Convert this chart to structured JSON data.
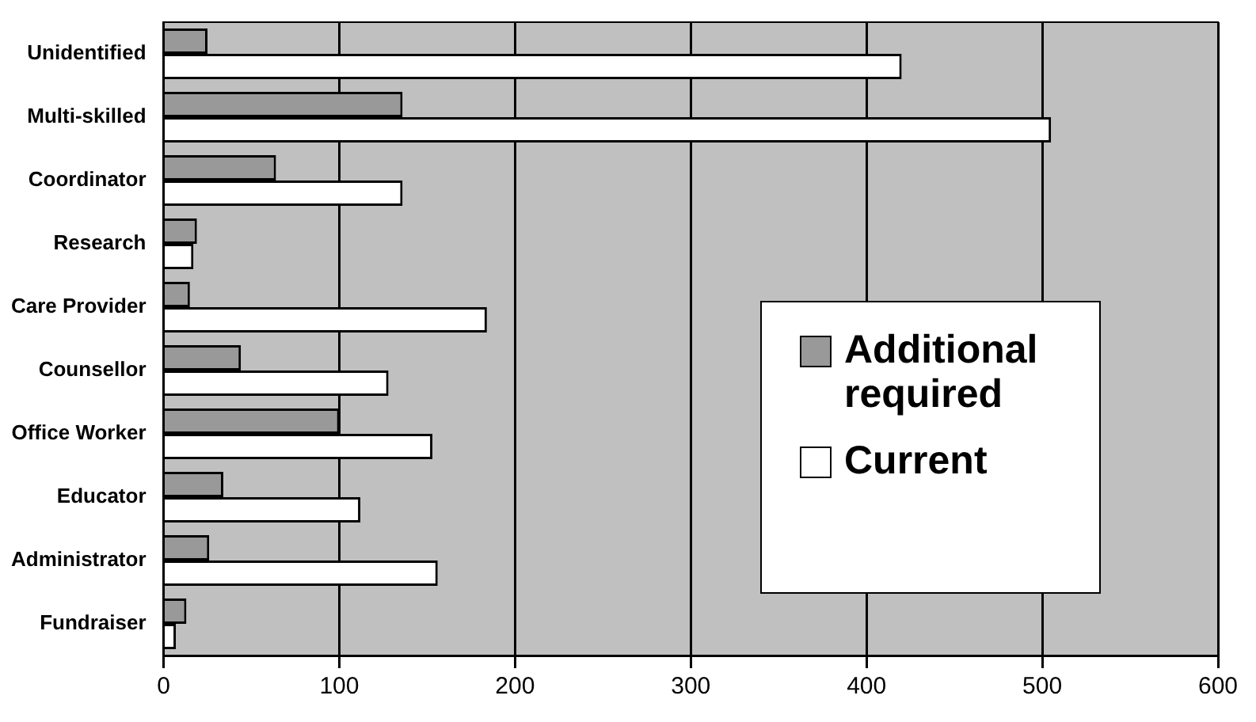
{
  "chart_data": {
    "type": "bar",
    "orientation": "horizontal",
    "categories": [
      "Unidentified",
      "Multi-skilled",
      "Coordinator",
      "Research",
      "Care Provider",
      "Counsellor",
      "Office Worker",
      "Educator",
      "Administrator",
      "Fundraiser"
    ],
    "series": [
      {
        "name": "Additional required",
        "color": "#999999",
        "values": [
          25,
          136,
          64,
          19,
          15,
          44,
          100,
          34,
          26,
          13
        ]
      },
      {
        "name": "Current",
        "color": "#ffffff",
        "values": [
          420,
          505,
          136,
          17,
          184,
          128,
          153,
          112,
          156,
          7
        ]
      }
    ],
    "xlim": [
      0,
      600
    ],
    "xticks": [
      0,
      100,
      200,
      300,
      400,
      500,
      600
    ],
    "grid": "x",
    "legend": "right"
  }
}
